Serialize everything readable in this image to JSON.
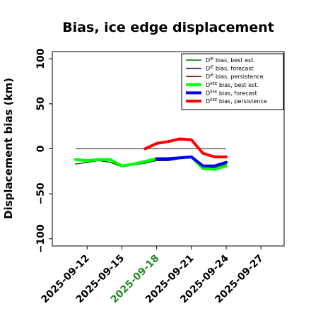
{
  "chart_data": {
    "type": "line",
    "title": "Bias, ice edge displacement",
    "ylabel": "Displacement bias (km)",
    "xlabel": "",
    "ylim": [
      -108,
      108
    ],
    "xlim": [
      "2025-09-09",
      "2025-09-29"
    ],
    "yticks": [
      100,
      50,
      0,
      -50,
      -100
    ],
    "ytick_labels": [
      "100",
      "50",
      "0",
      "−50",
      "−100"
    ],
    "xticks": [
      "2025-09-12",
      "2025-09-15",
      "2025-09-18",
      "2025-09-21",
      "2025-09-24",
      "2025-09-27"
    ],
    "xtick_labels": [
      "2025-09-12",
      "2025-09-15",
      "2025-09-18",
      "2025-09-21",
      "2025-09-24",
      "2025-09-27"
    ],
    "xtick_colors": [
      "#000000",
      "#000000",
      "#228b22",
      "#000000",
      "#000000",
      "#000000"
    ],
    "grid": false,
    "legend_position": "top-right",
    "reference_line": {
      "y": 0,
      "x_start": "2025-09-11",
      "x_end": "2025-09-24",
      "color": "#555555"
    },
    "series": [
      {
        "name": "D^IE bias, best est.",
        "name_base": "D",
        "name_sup": "IE",
        "name_rest": " bias, best est.",
        "color": "#006400",
        "line_width": 1.5,
        "x": [
          "2025-09-11",
          "2025-09-12",
          "2025-09-13",
          "2025-09-14",
          "2025-09-15",
          "2025-09-16",
          "2025-09-17",
          "2025-09-18",
          "2025-09-19",
          "2025-09-20",
          "2025-09-21",
          "2025-09-22",
          "2025-09-23",
          "2025-09-24"
        ],
        "y": [
          -17,
          -15,
          -13,
          -15,
          -20,
          -18,
          -16,
          -13,
          -12,
          -11,
          -10,
          -20,
          -21,
          -17
        ]
      },
      {
        "name": "D^IE bias, forecast",
        "name_base": "D",
        "name_sup": "IE",
        "name_rest": " bias, forecast",
        "color": "#00008b",
        "line_width": 1.5,
        "x": [
          "2025-09-18",
          "2025-09-19",
          "2025-09-20",
          "2025-09-21",
          "2025-09-22",
          "2025-09-23",
          "2025-09-24"
        ],
        "y": [
          -13,
          -13,
          -11,
          -9,
          -19,
          -19,
          -15
        ]
      },
      {
        "name": "D^IE bias, persistence",
        "name_base": "D",
        "name_sup": "IE",
        "name_rest": " bias, persistence",
        "color": "#8b0000",
        "line_width": 1.5,
        "x": [
          "2025-09-17",
          "2025-09-18",
          "2025-09-19",
          "2025-09-20",
          "2025-09-21",
          "2025-09-22",
          "2025-09-23",
          "2025-09-24"
        ],
        "y": [
          0,
          6,
          9,
          11,
          10,
          -5,
          -10,
          -10
        ]
      },
      {
        "name": "D^IIEE bias, best est.",
        "name_base": "D",
        "name_sup": "IIEE",
        "name_rest": " bias, best est.",
        "color": "#00ff00",
        "line_width": 4,
        "x": [
          "2025-09-11",
          "2025-09-12",
          "2025-09-13",
          "2025-09-14",
          "2025-09-15",
          "2025-09-16",
          "2025-09-17",
          "2025-09-18",
          "2025-09-19",
          "2025-09-20",
          "2025-09-21",
          "2025-09-22",
          "2025-09-23",
          "2025-09-24"
        ],
        "y": [
          -12,
          -13,
          -12,
          -12,
          -19,
          -17,
          -14,
          -11,
          -11,
          -10,
          -9,
          -22,
          -23,
          -19
        ]
      },
      {
        "name": "D^IIEE bias, forecast",
        "name_base": "D",
        "name_sup": "IIEE",
        "name_rest": " bias, forecast",
        "color": "#0000ff",
        "line_width": 4,
        "x": [
          "2025-09-18",
          "2025-09-19",
          "2025-09-20",
          "2025-09-21",
          "2025-09-22",
          "2025-09-23",
          "2025-09-24"
        ],
        "y": [
          -11,
          -11,
          -10,
          -9,
          -19,
          -19,
          -15
        ]
      },
      {
        "name": "D^IIEE bias, persistence",
        "name_base": "D",
        "name_sup": "IIEE",
        "name_rest": " bias, persistence",
        "color": "#ff0000",
        "line_width": 4,
        "x": [
          "2025-09-17",
          "2025-09-18",
          "2025-09-19",
          "2025-09-20",
          "2025-09-21",
          "2025-09-22",
          "2025-09-23",
          "2025-09-24"
        ],
        "y": [
          0,
          6,
          8,
          11,
          10,
          -5,
          -9,
          -9
        ]
      }
    ]
  }
}
